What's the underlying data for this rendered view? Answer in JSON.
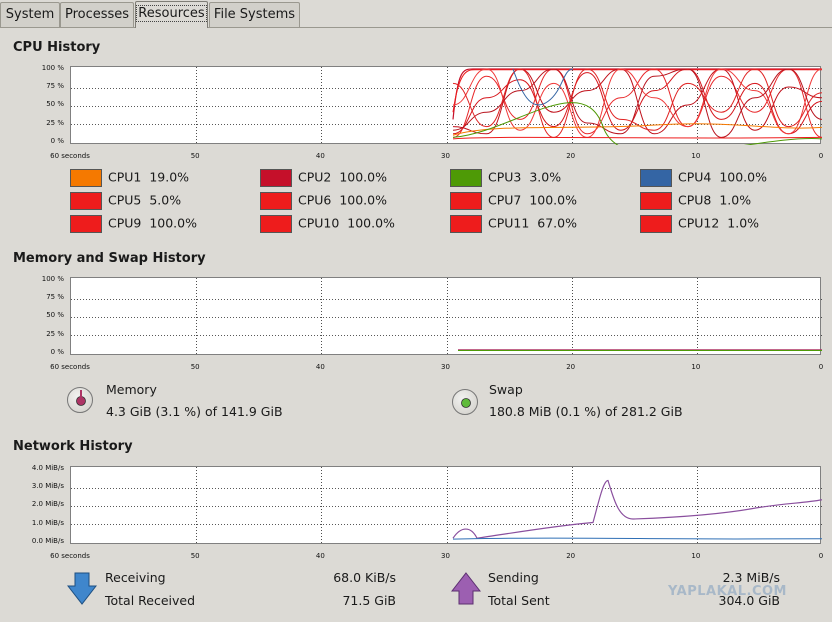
{
  "tabs": [
    {
      "label": "System"
    },
    {
      "label": "Processes"
    },
    {
      "label": "Resources"
    },
    {
      "label": "File Systems"
    }
  ],
  "cpu": {
    "title": "CPU History",
    "y_ticks": [
      "100 %",
      "75 %",
      "50 %",
      "25 %",
      "0 %"
    ],
    "x_ticks": [
      "60 seconds",
      "50",
      "40",
      "30",
      "20",
      "10",
      "0"
    ],
    "legend": [
      {
        "label": "CPU1",
        "value": "19.0%",
        "color": "#f57900"
      },
      {
        "label": "CPU2",
        "value": "100.0%",
        "color": "#c5102a"
      },
      {
        "label": "CPU3",
        "value": "3.0%",
        "color": "#4e9a06"
      },
      {
        "label": "CPU4",
        "value": "100.0%",
        "color": "#3465a4"
      },
      {
        "label": "CPU5",
        "value": "5.0%",
        "color": "#ee1c1c"
      },
      {
        "label": "CPU6",
        "value": "100.0%",
        "color": "#ee1c1c"
      },
      {
        "label": "CPU7",
        "value": "100.0%",
        "color": "#ee1c1c"
      },
      {
        "label": "CPU8",
        "value": "1.0%",
        "color": "#ee1c1c"
      },
      {
        "label": "CPU9",
        "value": "100.0%",
        "color": "#ee1c1c"
      },
      {
        "label": "CPU10",
        "value": "100.0%",
        "color": "#ee1c1c"
      },
      {
        "label": "CPU11",
        "value": "67.0%",
        "color": "#ee1c1c"
      },
      {
        "label": "CPU12",
        "value": "1.0%",
        "color": "#ee1c1c"
      }
    ]
  },
  "memory": {
    "title": "Memory and Swap History",
    "y_ticks": [
      "100 %",
      "75 %",
      "50 %",
      "25 %",
      "0 %"
    ],
    "x_ticks": [
      "60 seconds",
      "50",
      "40",
      "30",
      "20",
      "10",
      "0"
    ],
    "memory_label": "Memory",
    "memory_value": "4.3 GiB (3.1 %) of 141.9 GiB",
    "memory_color": "#ad3465",
    "swap_label": "Swap",
    "swap_value": "180.8 MiB (0.1 %) of 281.2 GiB",
    "swap_color": "#4e9a06"
  },
  "network": {
    "title": "Network History",
    "y_ticks": [
      "4.0 MiB/s",
      "3.0 MiB/s",
      "2.0 MiB/s",
      "1.0 MiB/s",
      "0.0 MiB/s"
    ],
    "x_ticks": [
      "60 seconds",
      "50",
      "40",
      "30",
      "20",
      "10",
      "0"
    ],
    "receiving_label": "Receiving",
    "receiving_value": "68.0 KiB/s",
    "total_received_label": "Total Received",
    "total_received_value": "71.5 GiB",
    "sending_label": "Sending",
    "sending_value": "2.3 MiB/s",
    "total_sent_label": "Total Sent",
    "total_sent_value": "304.0 GiB",
    "receiving_color": "#2f6fb5",
    "sending_color": "#8a4f9e"
  },
  "watermark": "YAPLAKAL.COM"
}
